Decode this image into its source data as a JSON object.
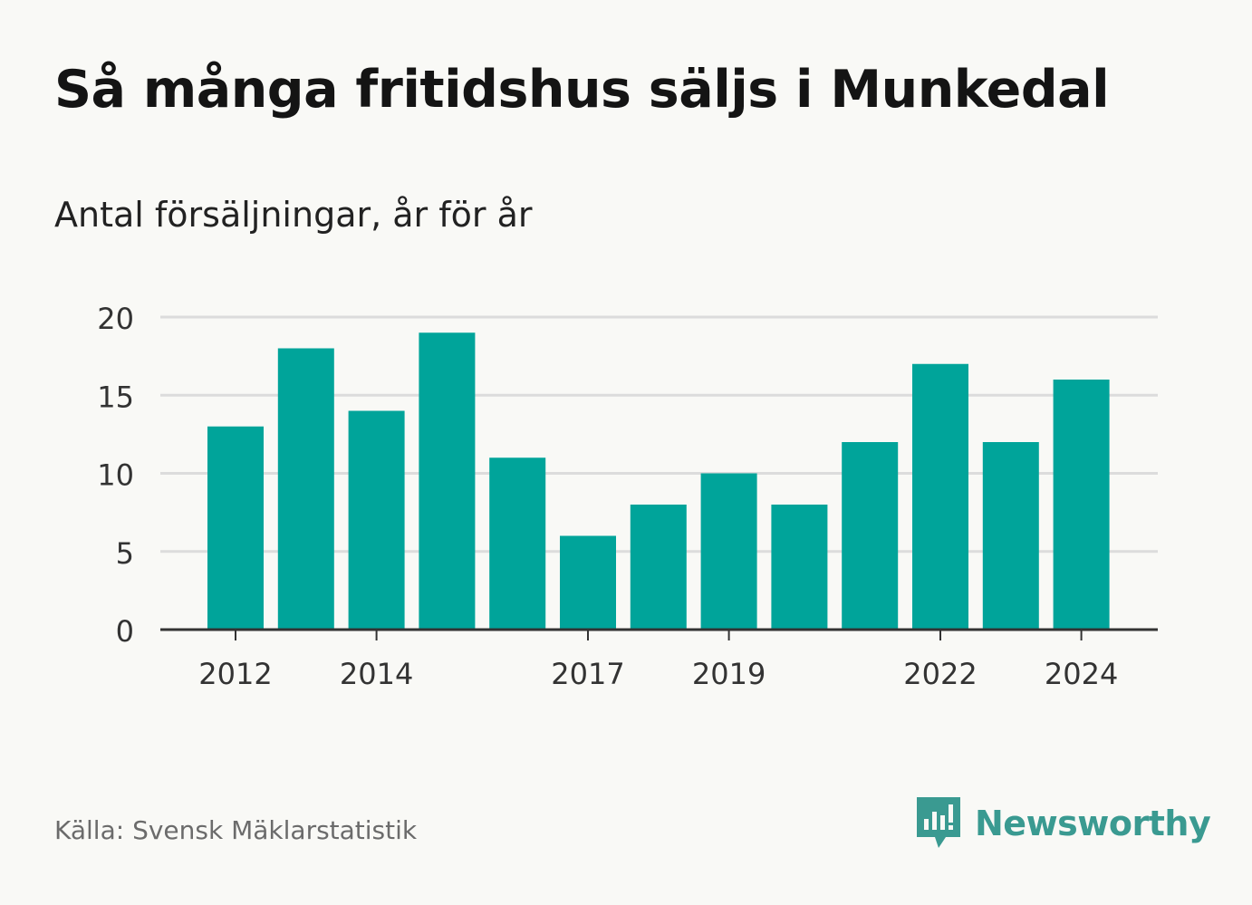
{
  "title": "Så många fritidshus säljs i Munkedal",
  "subtitle": "Antal försäljningar, år för år",
  "source": "Källa: Svensk Mäklarstatistik",
  "brand": {
    "name": "Newsworthy",
    "icon": "newsworthy-logo-icon",
    "color": "#3a9a91"
  },
  "chart_data": {
    "type": "bar",
    "x": [
      2012,
      2013,
      2014,
      2015,
      2016,
      2017,
      2018,
      2019,
      2020,
      2021,
      2022,
      2023,
      2024
    ],
    "values": [
      13,
      18,
      14,
      19,
      11,
      6,
      8,
      10,
      8,
      12,
      17,
      12,
      16
    ],
    "xticks": [
      "2012",
      "2014",
      "2017",
      "2019",
      "2022",
      "2024"
    ],
    "yticks": [
      0,
      5,
      10,
      15,
      20
    ],
    "ylim": [
      0,
      20
    ],
    "grid": true,
    "bar_color": "#00a49a",
    "grid_color": "#dcdcdc",
    "axis_color": "#333333"
  }
}
